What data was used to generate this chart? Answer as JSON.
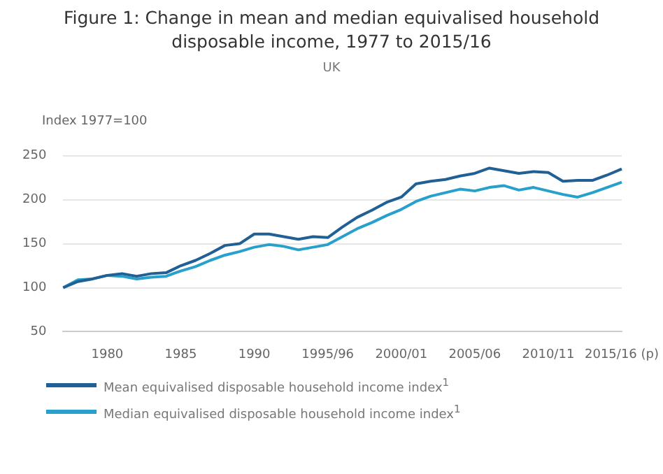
{
  "chart_data": {
    "type": "line",
    "title": "Figure 1: Change in mean and median equivalised household disposable income, 1977 to 2015/16",
    "subtitle": "UK",
    "ylabel": "Index 1977=100",
    "categories": [
      null,
      null,
      null,
      "1980",
      null,
      null,
      null,
      null,
      "1985",
      null,
      null,
      null,
      null,
      "1990",
      null,
      null,
      null,
      null,
      "1995/96",
      null,
      null,
      null,
      null,
      "2000/01",
      null,
      null,
      null,
      null,
      "2005/06",
      null,
      null,
      null,
      null,
      "2010/11",
      null,
      null,
      null,
      null,
      "2015/16 (p)"
    ],
    "series": [
      {
        "name": "Mean equivalised disposable household income index$^{1}$",
        "color": "#206095",
        "values": [
          100,
          107,
          110,
          114,
          116,
          113,
          116,
          117,
          125,
          131,
          139,
          148,
          150,
          161,
          161,
          158,
          155,
          158,
          157,
          169,
          180,
          188,
          197,
          203,
          218,
          221,
          223,
          227,
          230,
          236,
          233,
          230,
          232,
          231,
          221,
          222,
          222,
          228,
          235
        ]
      },
      {
        "name": "Median equivalised disposable household income index$^{1}$",
        "color": "#27a0cc",
        "values": [
          100,
          109,
          110,
          114,
          113,
          110,
          112,
          113,
          119,
          124,
          131,
          137,
          141,
          146,
          149,
          147,
          143,
          146,
          149,
          158,
          167,
          174,
          182,
          189,
          198,
          204,
          208,
          212,
          210,
          214,
          216,
          211,
          214,
          210,
          206,
          203,
          208,
          214,
          220
        ]
      }
    ],
    "ylim": [
      50,
      250
    ],
    "yticks": [
      50,
      100,
      150,
      200,
      250
    ],
    "grid": "y",
    "legend": "bottom",
    "marker": "none",
    "line_style": "solid"
  }
}
